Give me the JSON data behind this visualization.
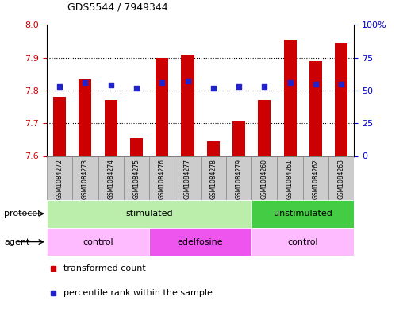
{
  "title": "GDS5544 / 7949344",
  "samples": [
    "GSM1084272",
    "GSM1084273",
    "GSM1084274",
    "GSM1084275",
    "GSM1084276",
    "GSM1084277",
    "GSM1084278",
    "GSM1084279",
    "GSM1084260",
    "GSM1084261",
    "GSM1084262",
    "GSM1084263"
  ],
  "transformed_count": [
    7.78,
    7.835,
    7.77,
    7.655,
    7.9,
    7.91,
    7.645,
    7.705,
    7.77,
    7.955,
    7.89,
    7.945
  ],
  "percentile_rank": [
    53,
    56,
    54,
    52,
    56,
    57,
    52,
    53,
    53,
    56,
    55,
    55
  ],
  "ylim_left": [
    7.6,
    8.0
  ],
  "ylim_right": [
    0,
    100
  ],
  "yticks_left": [
    7.6,
    7.7,
    7.8,
    7.9,
    8.0
  ],
  "yticks_right": [
    0,
    25,
    50,
    75,
    100
  ],
  "ytick_labels_right": [
    "0",
    "25",
    "50",
    "75",
    "100%"
  ],
  "bar_color": "#cc0000",
  "dot_color": "#2222cc",
  "protocol_labels": [
    {
      "text": "stimulated",
      "start": 0,
      "end": 8,
      "color": "#bbeeaa"
    },
    {
      "text": "unstimulated",
      "start": 8,
      "end": 12,
      "color": "#44cc44"
    }
  ],
  "agent_labels": [
    {
      "text": "control",
      "start": 0,
      "end": 4,
      "color": "#ffbbff"
    },
    {
      "text": "edelfosine",
      "start": 4,
      "end": 8,
      "color": "#ee55ee"
    },
    {
      "text": "control",
      "start": 8,
      "end": 12,
      "color": "#ffbbff"
    }
  ],
  "legend_items": [
    {
      "label": "transformed count",
      "color": "#cc0000"
    },
    {
      "label": "percentile rank within the sample",
      "color": "#2222cc"
    }
  ],
  "bar_bottom": 7.6,
  "bar_width": 0.5,
  "sample_box_color": "#cccccc",
  "sample_box_edge": "#888888"
}
